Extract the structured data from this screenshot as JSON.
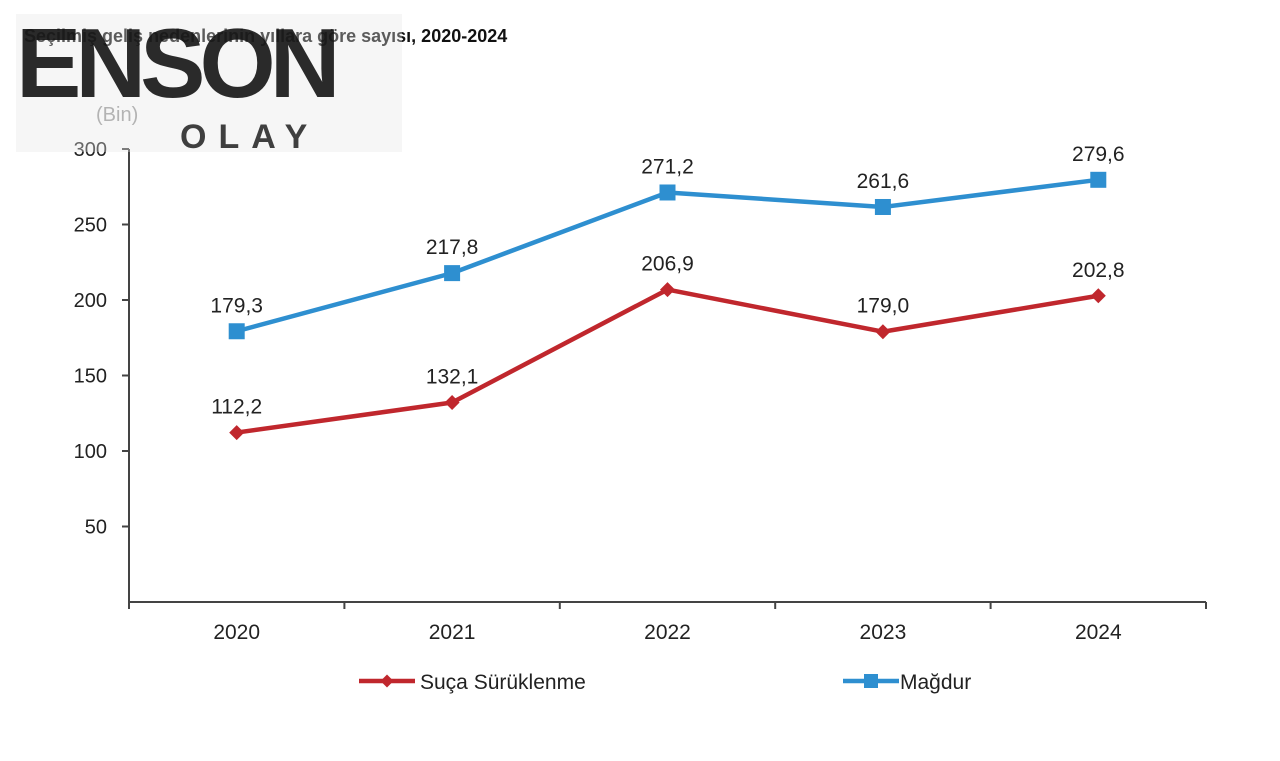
{
  "title": "Seçilmiş geliş nedenlerinin yıllara göre sayısı, 2020-2024",
  "logo": {
    "text_main": "ENSON",
    "text_sub": "OLAY"
  },
  "colors": {
    "suca": "#c0272d",
    "magdur": "#2e8fd0",
    "axis": "#444444"
  },
  "chart_data": {
    "type": "line",
    "title": "Seçilmiş geliş nedenlerinin yıllara göre sayısı, 2020-2024",
    "unit_label": "(Bin)",
    "categories": [
      "2020",
      "2021",
      "2022",
      "2023",
      "2024"
    ],
    "ylim": [
      0,
      300
    ],
    "yticks": [
      50,
      100,
      150,
      200,
      250,
      300
    ],
    "grid": false,
    "legend": "bottom",
    "series": [
      {
        "name": "Suça Sürüklenme",
        "values": [
          112.2,
          132.1,
          206.9,
          179.0,
          202.8
        ],
        "labels": [
          "112,2",
          "132,1",
          "206,9",
          "179,0",
          "202,8"
        ],
        "marker": "diamond",
        "color": "#c0272d"
      },
      {
        "name": "Mağdur",
        "values": [
          179.3,
          217.8,
          271.2,
          261.6,
          279.6
        ],
        "labels": [
          "179,3",
          "217,8",
          "271,2",
          "261,6",
          "279,6"
        ],
        "marker": "square",
        "color": "#2e8fd0"
      }
    ]
  }
}
